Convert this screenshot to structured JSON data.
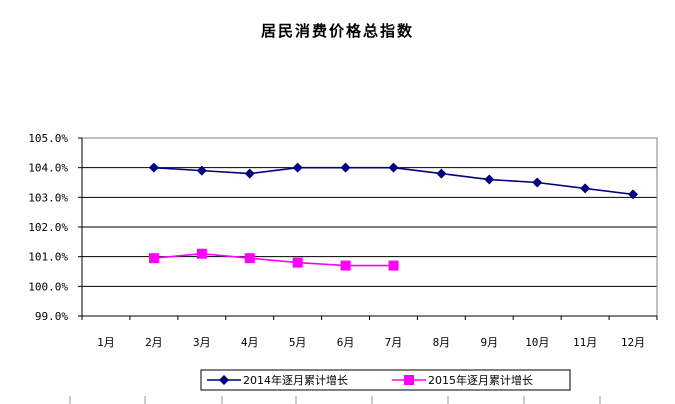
{
  "chart_data": {
    "type": "line",
    "title": "居民消费价格总指数",
    "categories": [
      "1月",
      "2月",
      "3月",
      "4月",
      "5月",
      "6月",
      "7月",
      "8月",
      "9月",
      "10月",
      "11月",
      "12月"
    ],
    "y_ticks": [
      "99.0%",
      "100.0%",
      "101.0%",
      "102.0%",
      "103.0%",
      "104.0%",
      "105.0%"
    ],
    "ylim": [
      99.0,
      105.0
    ],
    "grid": true,
    "legend_position": "bottom",
    "series": [
      {
        "name": "2014年逐月累计增长",
        "color": "#000080",
        "marker": "diamond",
        "values": [
          null,
          104.0,
          103.9,
          103.8,
          104.0,
          104.0,
          104.0,
          103.8,
          103.6,
          103.5,
          103.3,
          103.1
        ]
      },
      {
        "name": "2015年逐月累计增长",
        "color": "#FF00FF",
        "marker": "square",
        "values": [
          null,
          100.95,
          101.1,
          100.95,
          100.8,
          100.7,
          100.7,
          null,
          null,
          null,
          null,
          null
        ]
      }
    ]
  }
}
